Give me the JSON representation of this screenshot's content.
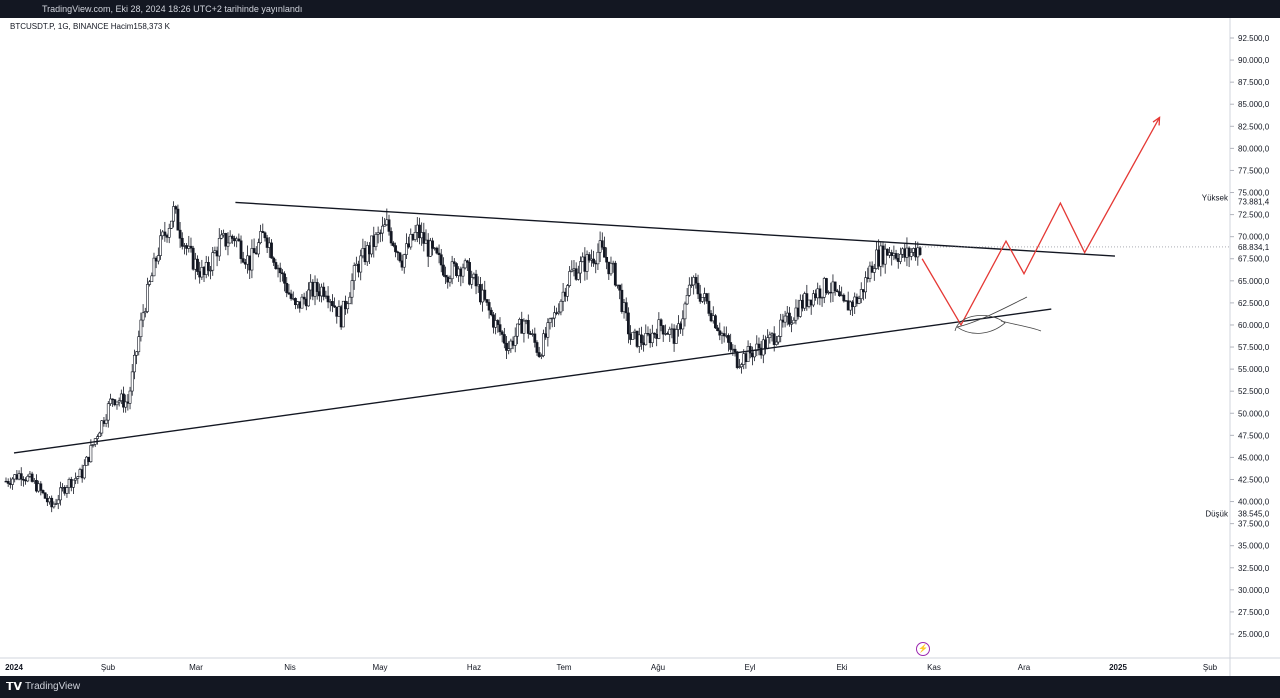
{
  "header": {
    "title": "TradingView.com, Eki 28, 2024 18:26 UTC+2 tarihinde yayınlandı"
  },
  "legend": {
    "symbol_line": "BTCUSDT.P, 1G, BINANCE  Hacim158,373 K"
  },
  "footer": {
    "brand": "TradingView",
    "brand_icon": "tradingview-logo-icon"
  },
  "colors": {
    "candles": "#131722",
    "projection": "#e53935",
    "trendlines": "#131722",
    "axis_text": "#131722",
    "markers": "#9c27b0"
  },
  "chart_data": {
    "type": "candlestick",
    "symbol": "BTCUSDT.P",
    "timeframe": "1G",
    "exchange": "BINANCE",
    "volume_label": "Hacim158,373 K",
    "ylim": [
      22500,
      95000
    ],
    "y_ticks": [
      "92.500,0",
      "90.000,0",
      "87.500,0",
      "85.000,0",
      "82.500,0",
      "80.000,0",
      "77.500,0",
      "75.000,0",
      "72.500,0",
      "70.000,0",
      "67.500,0",
      "65.000,0",
      "62.500,0",
      "60.000,0",
      "57.500,0",
      "55.000,0",
      "52.500,0",
      "50.000,0",
      "47.500,0",
      "45.000,0",
      "42.500,0",
      "40.000,0",
      "37.500,0",
      "35.000,0",
      "32.500,0",
      "30.000,0",
      "27.500,0",
      "25.000,0"
    ],
    "y_tick_values": [
      92500,
      90000,
      87500,
      85000,
      82500,
      80000,
      77500,
      75000,
      72500,
      70000,
      67500,
      65000,
      62500,
      60000,
      57500,
      55000,
      52500,
      50000,
      47500,
      45000,
      42500,
      40000,
      37500,
      35000,
      32500,
      30000,
      27500,
      25000
    ],
    "x_ticks": [
      "2024",
      "Şub",
      "Mar",
      "Nis",
      "May",
      "Haz",
      "Tem",
      "Ağu",
      "Eyl",
      "Eki",
      "Kas",
      "Ara",
      "2025",
      "Şub"
    ],
    "x_tick_month_index": [
      0,
      1,
      2,
      3,
      4,
      5,
      6,
      7,
      8,
      9,
      10,
      11,
      12,
      13
    ],
    "high": {
      "label": "Yüksek",
      "value": "73.881,4"
    },
    "low": {
      "label": "Düşük",
      "value": "38.545,0"
    },
    "last_price": "68.834,1",
    "weekly_closes": [
      42300,
      43200,
      41800,
      39400,
      42000,
      43200,
      47800,
      51800,
      51200,
      61500,
      68500,
      72800,
      68000,
      65500,
      69200,
      70000,
      67000,
      70500,
      66000,
      61800,
      63800,
      64200,
      60800,
      66500,
      69000,
      71200,
      67500,
      70600,
      68000,
      66000,
      66800,
      64000,
      60500,
      57500,
      60500,
      56900,
      61000,
      65700,
      67000,
      68500,
      65500,
      58500,
      58200,
      60000,
      58500,
      64800,
      62500,
      59000,
      56000,
      57000,
      58000,
      59800,
      62000,
      63500,
      64500,
      62000,
      63000,
      67500,
      68500,
      67800,
      68834
    ],
    "annotations": {
      "upper_trendline": [
        [
          "2024-03-14",
          73881
        ],
        [
          "2024-12-31",
          67800
        ]
      ],
      "lower_trendline": [
        [
          "2024-01-01",
          45500
        ],
        [
          "2024-12-10",
          61800
        ]
      ],
      "projection_path": [
        [
          "2024-10-28",
          67500
        ],
        [
          "2024-11-10",
          60000
        ],
        [
          "2024-11-25",
          69500
        ],
        [
          "2024-12-01",
          65800
        ],
        [
          "2024-12-13",
          73800
        ],
        [
          "2024-12-21",
          68200
        ],
        [
          "2025-01-15",
          83500
        ]
      ]
    }
  }
}
